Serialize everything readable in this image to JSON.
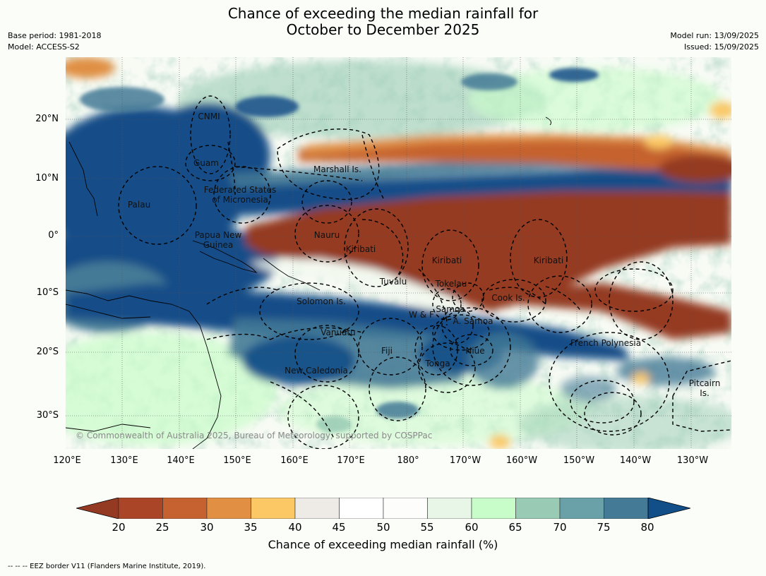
{
  "title": {
    "line1": "Chance of exceeding the median rainfall for",
    "line2": "October to December 2025"
  },
  "meta": {
    "base_period": "Base period: 1981-2018",
    "model": "Model: ACCESS-S2",
    "model_run": "Model run: 13/09/2025",
    "issued": "Issued: 15/09/2025"
  },
  "map": {
    "copyright": "© Commonwealth of Australia 2025, Bureau of Meteorology, supported by COSPPac",
    "lon_ticks": [
      "120°E",
      "130°E",
      "140°E",
      "150°E",
      "160°E",
      "170°E",
      "180°",
      "170°W",
      "160°W",
      "150°W",
      "140°W",
      "130°W"
    ],
    "lat_ticks": [
      "20°N",
      "10°N",
      "0°",
      "10°S",
      "20°S",
      "30°S"
    ],
    "places": [
      {
        "id": "cnmi",
        "lines": [
          "CNMI"
        ]
      },
      {
        "id": "guam",
        "lines": [
          "Guam"
        ]
      },
      {
        "id": "marshall",
        "lines": [
          "Marshall Is."
        ]
      },
      {
        "id": "fsm",
        "lines": [
          "Federated States",
          "of Micronesia"
        ]
      },
      {
        "id": "palau",
        "lines": [
          "Palau"
        ]
      },
      {
        "id": "png",
        "lines": [
          "Papua New",
          "Guinea"
        ]
      },
      {
        "id": "nauru",
        "lines": [
          "Nauru"
        ]
      },
      {
        "id": "kiribati1",
        "lines": [
          "Kiribati"
        ]
      },
      {
        "id": "kiribati2",
        "lines": [
          "Kiribati"
        ]
      },
      {
        "id": "kiribati3",
        "lines": [
          "Kiribati"
        ]
      },
      {
        "id": "tuvalu",
        "lines": [
          "Tuvalu"
        ]
      },
      {
        "id": "tokelau",
        "lines": [
          "Tokelau"
        ]
      },
      {
        "id": "cook",
        "lines": [
          "Cook Is."
        ]
      },
      {
        "id": "solomon",
        "lines": [
          "Solomon Is."
        ]
      },
      {
        "id": "samoa",
        "lines": [
          "Samoa"
        ]
      },
      {
        "id": "wf",
        "lines": [
          "W & F"
        ]
      },
      {
        "id": "asamoa",
        "lines": [
          "A. Samoa"
        ]
      },
      {
        "id": "vanuatu",
        "lines": [
          "Vanuatu"
        ]
      },
      {
        "id": "fiji",
        "lines": [
          "Fiji"
        ]
      },
      {
        "id": "niue",
        "lines": [
          "Niue"
        ]
      },
      {
        "id": "frpoly",
        "lines": [
          "French Polynesia"
        ]
      },
      {
        "id": "tonga",
        "lines": [
          "Tonga"
        ]
      },
      {
        "id": "newcal",
        "lines": [
          "New Caledonia"
        ]
      },
      {
        "id": "pitcairn",
        "lines": [
          "Pitcairn",
          "Is."
        ]
      }
    ]
  },
  "colorbar": {
    "label": "Chance of exceeding median rainfall (%)",
    "ticks": [
      "20",
      "25",
      "30",
      "35",
      "40",
      "45",
      "50",
      "55",
      "60",
      "65",
      "70",
      "75",
      "80"
    ],
    "under_color": "#943a22",
    "over_color": "#124e88",
    "colors": [
      "#aa4527",
      "#c5622f",
      "#e08f43",
      "#fbc865",
      "#eeebe6",
      "#ffffff",
      "#fdfefc",
      "#e8f6e8",
      "#c8fcc8",
      "#99cbb4",
      "#6aa1a8",
      "#447a96"
    ]
  },
  "footnote": "--  --  -- EEZ border V11 (Flanders Marine Institute, 2019)."
}
